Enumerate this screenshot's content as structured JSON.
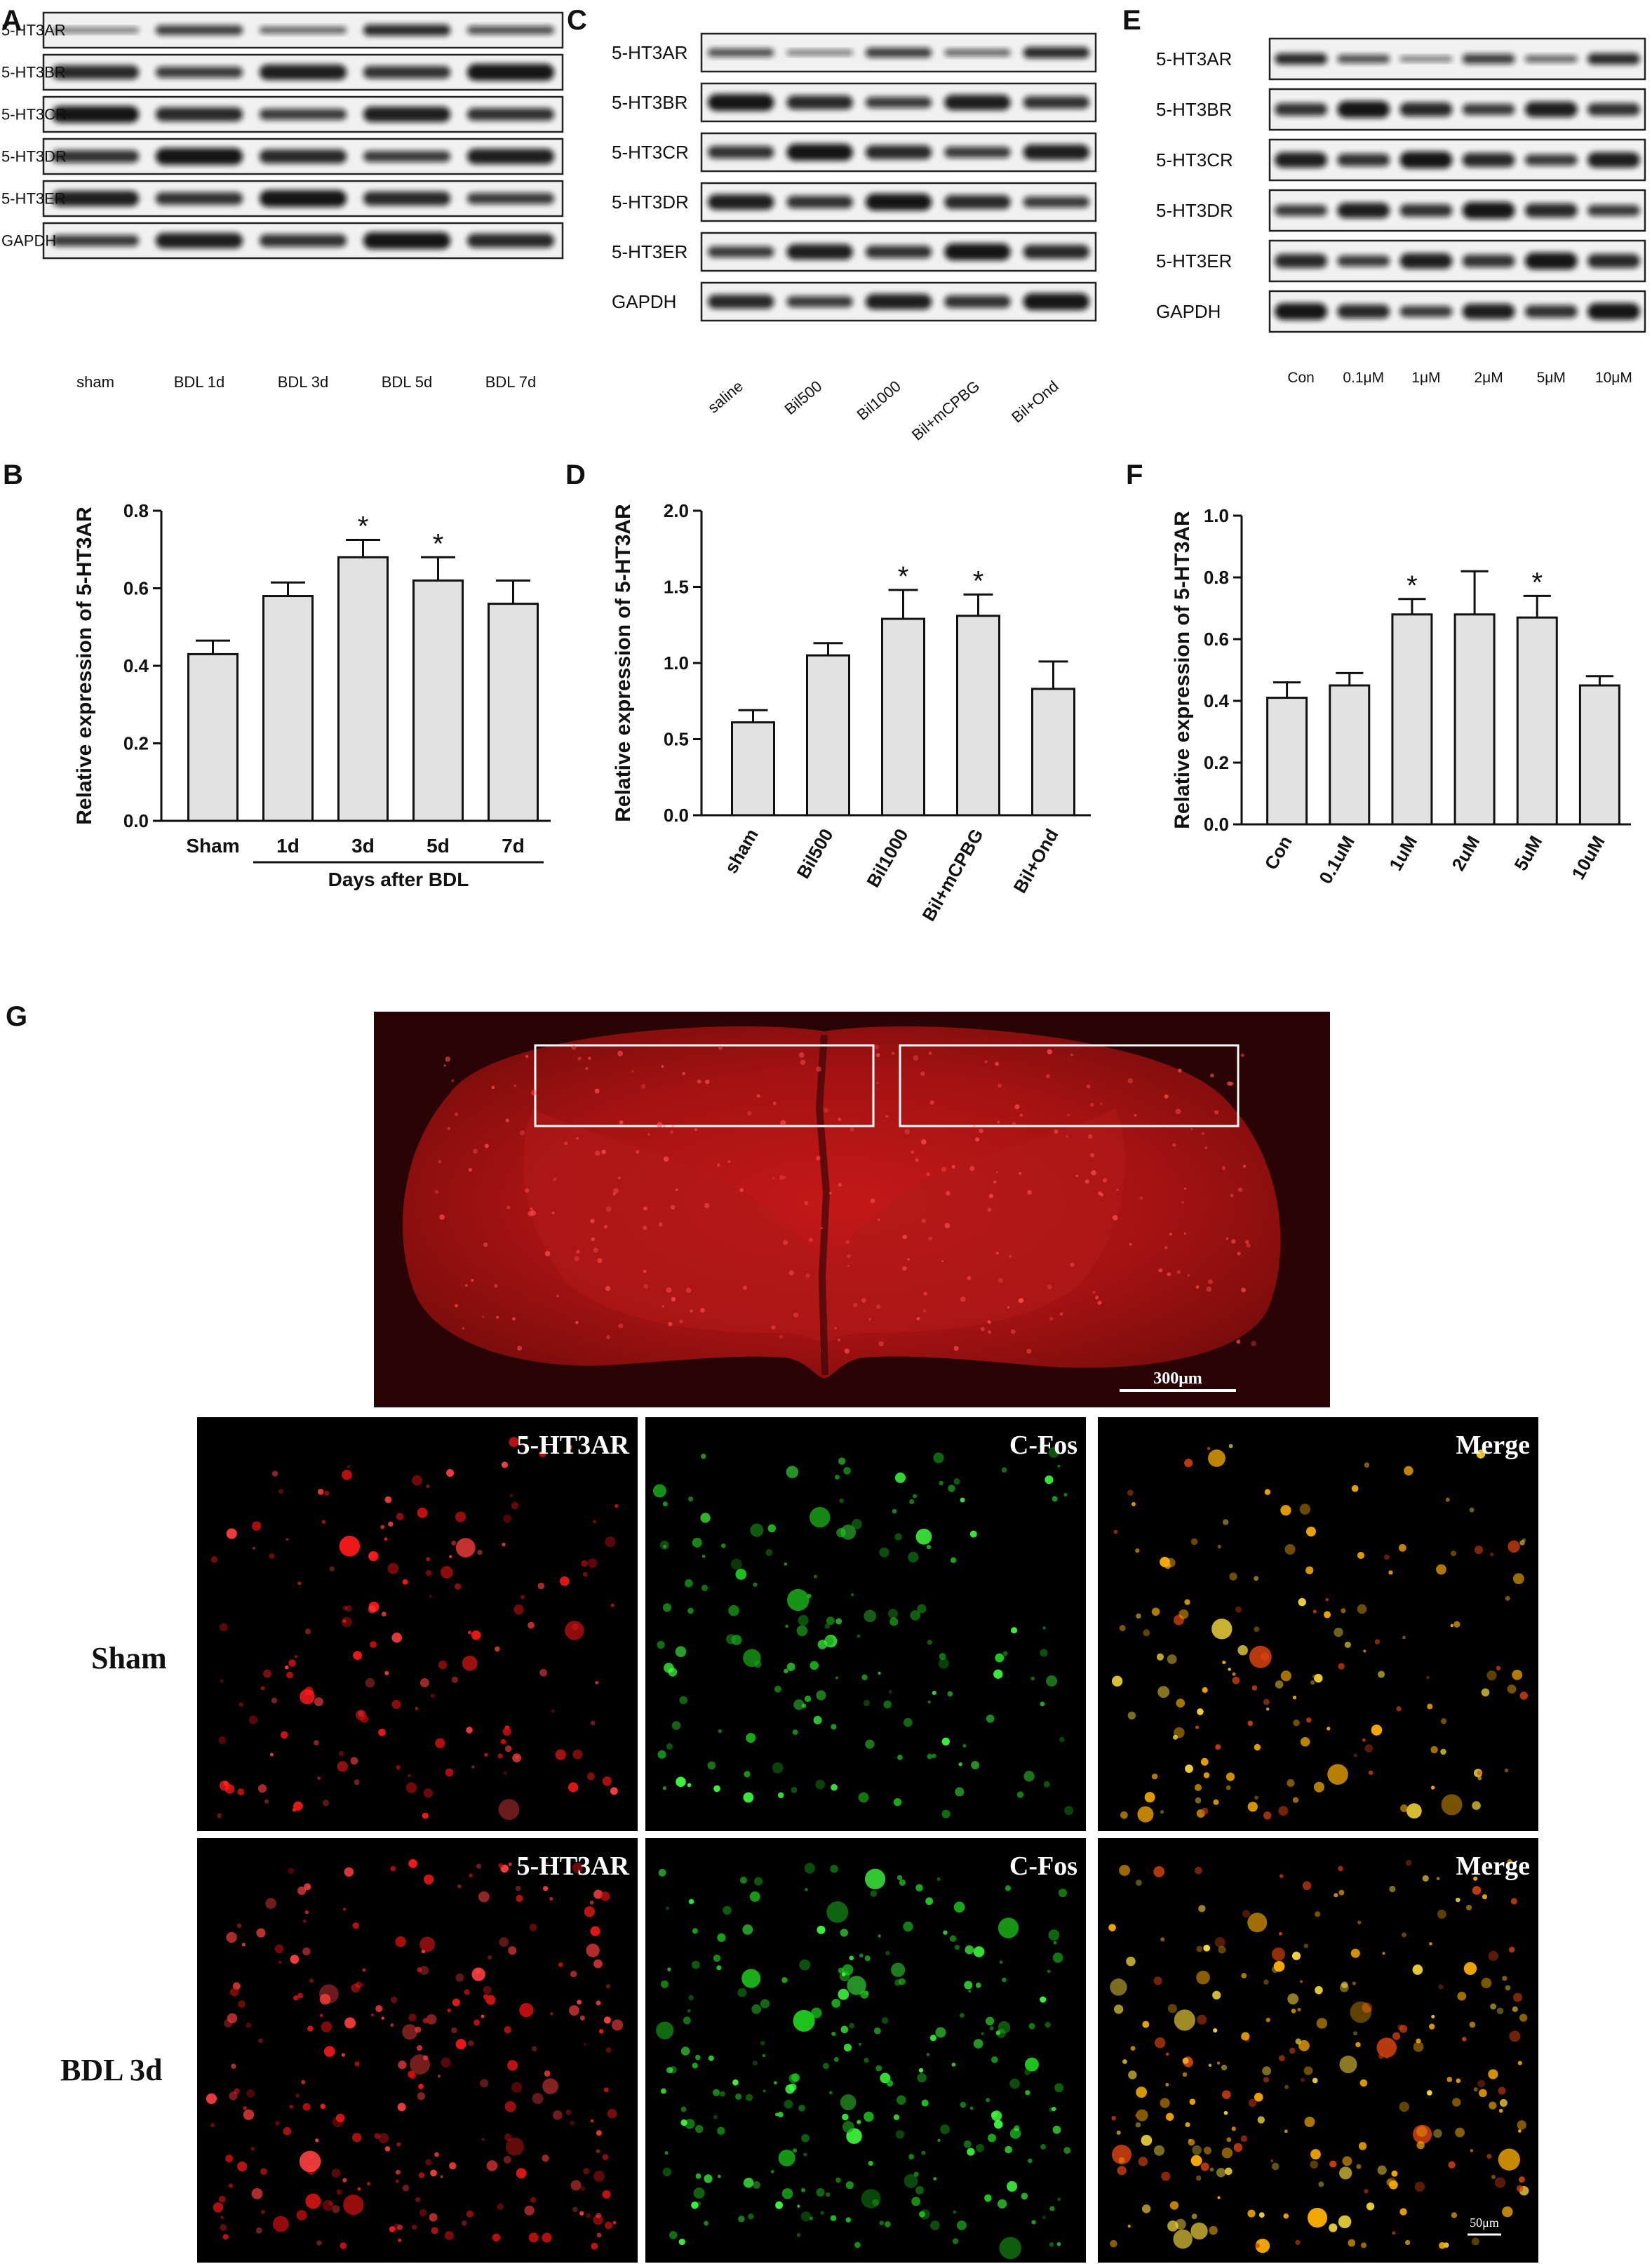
{
  "panel_letters": [
    "A",
    "B",
    "C",
    "D",
    "E",
    "F",
    "G"
  ],
  "blots": {
    "A": {
      "rows": [
        "5-HT3AR",
        "5-HT3BR",
        "5-HT3CR",
        "5-HT3DR",
        "5-HT3ER",
        "GAPDH"
      ],
      "lanes": [
        "sham",
        "BDL 1d",
        "BDL 3d",
        "BDL 5d",
        "BDL 7d"
      ]
    },
    "C": {
      "rows": [
        "5-HT3AR",
        "5-HT3BR",
        "5-HT3CR",
        "5-HT3DR",
        "5-HT3ER",
        "GAPDH"
      ],
      "lanes": [
        "saline",
        "Bil500",
        "Bil1000",
        "Bil+mCPBG",
        "Bil+Ond"
      ]
    },
    "E": {
      "rows": [
        "5-HT3AR",
        "5-HT3BR",
        "5-HT3CR",
        "5-HT3DR",
        "5-HT3ER",
        "GAPDH"
      ],
      "lanes": [
        "Con",
        "0.1μM",
        "1μM",
        "2μM",
        "5μM",
        "10μM"
      ]
    }
  },
  "chart_data": [
    {
      "panel": "B",
      "type": "bar",
      "categories": [
        "Sham",
        "1d",
        "3d",
        "5d",
        "7d"
      ],
      "values": [
        0.43,
        0.58,
        0.68,
        0.62,
        0.56
      ],
      "errors": [
        0.035,
        0.035,
        0.045,
        0.06,
        0.06
      ],
      "significant": [
        false,
        false,
        true,
        true,
        false
      ],
      "ylabel": "Relative expression of 5-HT3AR",
      "group_label": "Days after BDL",
      "ylim": [
        0,
        0.8
      ],
      "yticks": [
        "0.0",
        "0.2",
        "0.4",
        "0.6",
        "0.8"
      ],
      "yticks_values": [
        0,
        0.2,
        0.4,
        0.6,
        0.8
      ],
      "star": "*"
    },
    {
      "panel": "D",
      "type": "bar",
      "categories": [
        "sham",
        "Bil500",
        "Bil1000",
        "Bil+mCPBG",
        "Bil+Ond"
      ],
      "values": [
        0.61,
        1.05,
        1.29,
        1.31,
        0.83
      ],
      "errors": [
        0.08,
        0.08,
        0.19,
        0.14,
        0.18
      ],
      "significant": [
        false,
        false,
        true,
        true,
        false
      ],
      "ylabel": "Relative expression of 5-HT3AR",
      "ylim": [
        0,
        2.0
      ],
      "yticks": [
        "0.0",
        "0.5",
        "1.0",
        "1.5",
        "2.0"
      ],
      "yticks_values": [
        0,
        0.5,
        1.0,
        1.5,
        2.0
      ],
      "star": "*"
    },
    {
      "panel": "F",
      "type": "bar",
      "categories": [
        "Con",
        "0.1uM",
        "1uM",
        "2uM",
        "5uM",
        "10uM"
      ],
      "values": [
        0.41,
        0.45,
        0.68,
        0.68,
        0.67,
        0.45
      ],
      "errors": [
        0.05,
        0.04,
        0.05,
        0.14,
        0.07,
        0.03
      ],
      "significant": [
        false,
        false,
        true,
        false,
        true,
        false
      ],
      "ylabel": "Relative expression of 5-HT3AR",
      "ylim": [
        0,
        1.0
      ],
      "yticks": [
        "0.0",
        "0.2",
        "0.4",
        "0.6",
        "0.8",
        "1.0"
      ],
      "yticks_values": [
        0,
        0.2,
        0.4,
        0.6,
        0.8,
        1.0
      ],
      "star": "*"
    }
  ],
  "panel_g": {
    "scale_top": "300μm",
    "scale_bottom": "50μm",
    "channels": [
      "5-HT3AR",
      "C-Fos",
      "Merge"
    ],
    "rows": [
      "Sham",
      "BDL 3d"
    ]
  }
}
